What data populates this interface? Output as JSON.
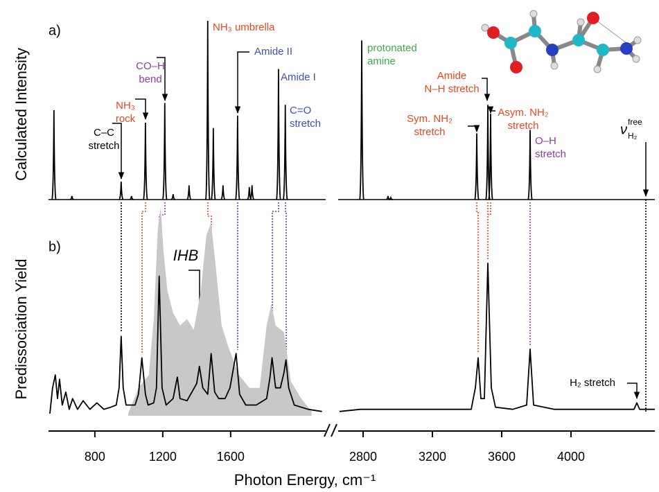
{
  "chart_data": {
    "type": "spectrum",
    "x_label": "Photon Energy, cm⁻¹",
    "xaxis_segments": [
      {
        "xlim": [
          527,
          2160
        ],
        "xticks": [
          800,
          1200,
          1600
        ]
      },
      {
        "xlim": [
          2656,
          4484
        ],
        "xticks": [
          2800,
          3200,
          3600,
          4000
        ]
      }
    ],
    "panels": [
      {
        "type": "stick",
        "label": "a)",
        "y_label": "Calculated Intensity",
        "ylim": [
          0,
          1
        ],
        "color": "#000000",
        "segments": [
          {
            "x": [
              559,
              665,
              955,
              1016,
              1098,
              1212,
              1261,
              1355,
              1465,
              1498,
              1555,
              1641,
              1710,
              1726,
              1882,
              1922
            ],
            "values": [
              0.5,
              0.02,
              0.1,
              0.02,
              0.43,
              0.54,
              0.03,
              0.08,
              1.0,
              0.4,
              0.08,
              0.47,
              0.07,
              0.08,
              0.73,
              0.53
            ]
          },
          {
            "x": [
              2792,
              2944,
              2960,
              3456,
              3520,
              3536,
              3764
            ],
            "values": [
              0.89,
              0.02,
              0.01,
              0.37,
              0.53,
              0.48,
              0.39
            ]
          }
        ]
      },
      {
        "type": "line",
        "label": "b)",
        "y_label": "Predissociation Yield",
        "ylim": [
          0,
          1
        ],
        "color": "#000000",
        "shaded": {
          "color": "#c8c8c8",
          "x": [
            996,
            1057,
            1118,
            1147,
            1171,
            1188,
            1204,
            1228,
            1261,
            1302,
            1343,
            1383,
            1424,
            1457,
            1485,
            1514,
            1547,
            1587,
            1649,
            1710,
            1771,
            1812,
            1840,
            1865,
            1914,
            1955,
            2016,
            2077
          ],
          "values": [
            0.01,
            0.13,
            0.19,
            0.45,
            0.87,
            0.97,
            0.77,
            0.58,
            0.48,
            0.42,
            0.45,
            0.4,
            0.58,
            0.84,
            0.9,
            0.68,
            0.42,
            0.32,
            0.19,
            0.13,
            0.13,
            0.42,
            0.52,
            0.42,
            0.39,
            0.16,
            0.08,
            0.02
          ]
        },
        "segments": [
          {
            "x": [
              535,
              551,
              567,
              580,
              592,
              608,
              629,
              649,
              669,
              698,
              731,
              771,
              812,
              853,
              894,
              926,
              943,
              955,
              967,
              984,
              1037,
              1057,
              1077,
              1098,
              1114,
              1147,
              1163,
              1179,
              1196,
              1220,
              1261,
              1286,
              1302,
              1343,
              1400,
              1416,
              1436,
              1465,
              1485,
              1506,
              1530,
              1567,
              1596,
              1632,
              1653,
              1689,
              1751,
              1812,
              1832,
              1844,
              1865,
              1893,
              1914,
              1926,
              1942,
              1975,
              2057,
              2138
            ],
            "values": [
              0.01,
              0.13,
              0.19,
              0.08,
              0.17,
              0.05,
              0.11,
              0.03,
              0.08,
              0.03,
              0.07,
              0.03,
              0.06,
              0.03,
              0.04,
              0.05,
              0.13,
              0.37,
              0.13,
              0.05,
              0.05,
              0.1,
              0.27,
              0.1,
              0.05,
              0.06,
              0.13,
              0.65,
              0.13,
              0.05,
              0.08,
              0.18,
              0.08,
              0.07,
              0.15,
              0.23,
              0.13,
              0.1,
              0.29,
              0.11,
              0.08,
              0.08,
              0.13,
              0.29,
              0.1,
              0.05,
              0.05,
              0.08,
              0.18,
              0.27,
              0.13,
              0.13,
              0.2,
              0.26,
              0.13,
              0.05,
              0.03,
              0.02
            ]
          },
          {
            "x": [
              2664,
              2784,
              2944,
              3104,
              3304,
              3424,
              3448,
              3464,
              3480,
              3500,
              3520,
              3540,
              3564,
              3664,
              3744,
              3764,
              3784,
              3904,
              4104,
              4304,
              4364,
              4380,
              4396,
              4484
            ],
            "values": [
              0.02,
              0.03,
              0.03,
              0.03,
              0.03,
              0.03,
              0.13,
              0.27,
              0.08,
              0.08,
              0.71,
              0.13,
              0.04,
              0.03,
              0.05,
              0.31,
              0.05,
              0.03,
              0.03,
              0.03,
              0.03,
              0.06,
              0.03,
              0.03
            ]
          }
        ]
      }
    ],
    "annotations": [
      {
        "lines": [
          "C–C",
          "stretch"
        ],
        "color": "#000000"
      },
      {
        "lines": [
          "NH₃",
          "rock"
        ],
        "color": "#e8461e"
      },
      {
        "lines": [
          "CO–H",
          "bend"
        ],
        "color": "#8e3ea0"
      },
      {
        "lines": [
          "NH₃ umbrella"
        ],
        "color": "#e8461e"
      },
      {
        "lines": [
          "Amide II"
        ],
        "color": "#3e4fb0"
      },
      {
        "lines": [
          "Amide I"
        ],
        "color": "#3e4fb0"
      },
      {
        "lines": [
          "C=O",
          "stretch"
        ],
        "color": "#3e4fb0"
      },
      {
        "lines": [
          "protonated",
          "amine"
        ],
        "color": "#3aaa4a"
      },
      {
        "lines": [
          "Amide",
          "N–H stretch"
        ],
        "color": "#e8461e"
      },
      {
        "lines": [
          "Sym. NH₂",
          "stretch"
        ],
        "color": "#e8461e"
      },
      {
        "lines": [
          "Asym. NH₂",
          "stretch"
        ],
        "color": "#e8461e"
      },
      {
        "lines": [
          "O–H",
          "stretch"
        ],
        "color": "#8e3ea0"
      },
      {
        "lines": [
          "H₂ stretch"
        ],
        "color": "#000000"
      },
      {
        "lines": [
          "IHB"
        ],
        "color": "#000000"
      }
    ],
    "free_h2": {
      "symbol": "ν",
      "subscript": "H₂",
      "superscript": "free"
    }
  }
}
